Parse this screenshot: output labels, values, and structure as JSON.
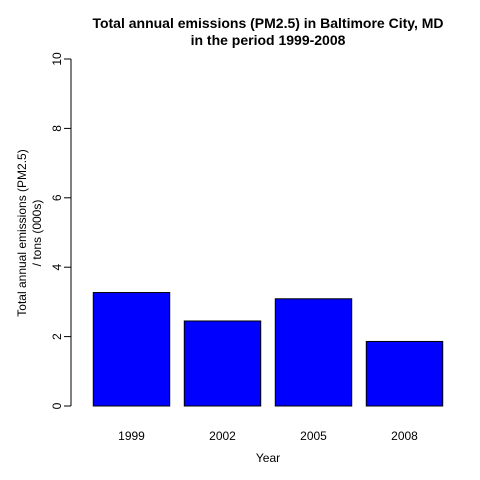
{
  "chart_data": {
    "type": "bar",
    "title_lines": [
      "Total annual emissions (PM2.5) in Baltimore City, MD",
      "in the period 1999-2008"
    ],
    "xlabel": "Year",
    "ylabel_lines": [
      "Total annual emissions (PM2.5)",
      "/ tons (000s)"
    ],
    "categories": [
      "1999",
      "2002",
      "2005",
      "2008"
    ],
    "values": [
      3.27,
      2.45,
      3.09,
      1.86
    ],
    "ylim": [
      0,
      10
    ],
    "yticks": [
      "0",
      "2",
      "4",
      "6",
      "8",
      "10"
    ],
    "bar_color": "#0000ff",
    "bar_border_color": "#000000",
    "grid": false,
    "legend": "none"
  }
}
